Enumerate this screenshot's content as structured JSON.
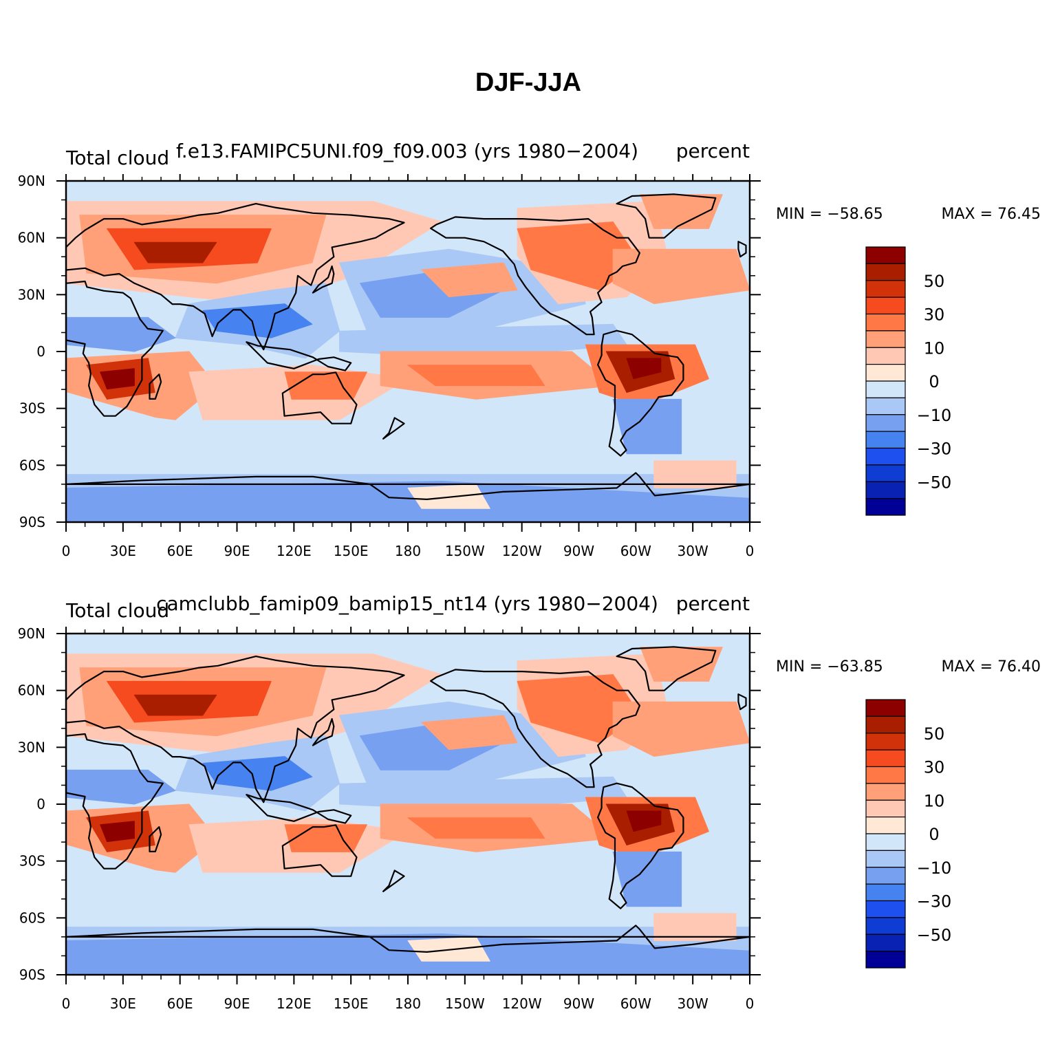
{
  "title": "DJF-JJA",
  "lon_ticks": [
    "0",
    "30E",
    "60E",
    "90E",
    "120E",
    "150E",
    "180",
    "150W",
    "120W",
    "90W",
    "60W",
    "30W",
    "0"
  ],
  "lat_ticks": [
    "90N",
    "60N",
    "30N",
    "0",
    "30S",
    "60S",
    "90S"
  ],
  "colorbar": {
    "colors": [
      "#000096",
      "#0a22b4",
      "#0f3cd2",
      "#1e50f0",
      "#4682f0",
      "#78a0f0",
      "#aac8f5",
      "#d2e6fa",
      "#ffe8d6",
      "#ffc8b4",
      "#ffa078",
      "#ff7846",
      "#f54b1e",
      "#d2320a",
      "#aa1e00",
      "#8c0000"
    ],
    "labels": [
      "50",
      "30",
      "10",
      "0",
      "−10",
      "−30",
      "−50"
    ]
  },
  "panels": [
    {
      "variable": "Total cloud",
      "case": "f.e13.FAMIPC5UNI.f09_f09.003 (yrs 1980−2004)",
      "units": "percent",
      "min_label": "MIN = −58.65",
      "max_label": "MAX =   76.45",
      "min": -58.65,
      "max": 76.45
    },
    {
      "variable": "Total cloud",
      "case": "camclubb_famip09_bamip15_nt14 (yrs 1980−2004)",
      "units": "percent",
      "min_label": "MIN = −63.85",
      "max_label": "MAX =   76.40",
      "min": -63.85,
      "max": 76.4
    }
  ]
}
